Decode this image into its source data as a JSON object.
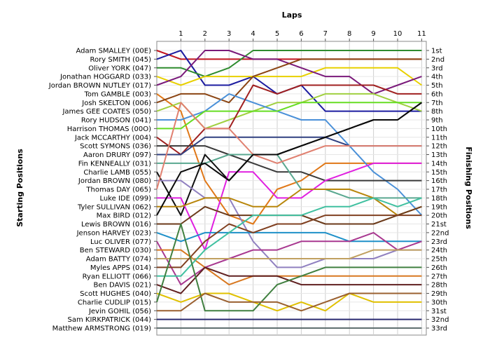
{
  "chart_data": {
    "type": "line",
    "title": "",
    "xlabel": "Laps",
    "ylabel_left": "Starting Positions",
    "ylabel_right": "Finishing Positions",
    "x": [
      0,
      1,
      2,
      3,
      4,
      5,
      6,
      7,
      8,
      9,
      10,
      11
    ],
    "lap_ticks": [
      1,
      2,
      3,
      4,
      5,
      6,
      7,
      8,
      9,
      10,
      11
    ],
    "xlim": [
      0,
      11
    ],
    "ylim": [
      1,
      33
    ],
    "y_inverted": true,
    "grid": true,
    "starting_labels": [
      "Adam SMALLEY (00E)",
      "Rory SMITH (045)",
      "Oliver YORK (047)",
      "Jonathan HOGGARD (033)",
      "Jordan BROWN NUTLEY (017)",
      "Tom GAMBLE (003)",
      "Josh SKELTON (006)",
      "James GEE COATES (050)",
      "Rory HUDSON (041)",
      "Harrison THOMAS (00O)",
      "Jack MCCARTHY (004)",
      "Scott SYMONS (036)",
      "Aaron DRURY (097)",
      "Fin KENNEALLY (031)",
      "Charlie LAMB (055)",
      "Jordan BROWN (080)",
      "Thomas DAY (065)",
      "Luke IDE (099)",
      "Tyler SULLIVAN (062)",
      "Max BIRD (012)",
      "Lewis BROWN (016)",
      "Jenson HARVEY (023)",
      "Luc OLIVER (077)",
      "Ben STEWARD (030)",
      "Adam BATTY (074)",
      "Myles APPS (014)",
      "Ryan ELLIOTT (066)",
      "Ben DAVIS (021)",
      "Scott HUGHES (040)",
      "Charlie CUDLIP (015)",
      "Jevin GOHIL (056)",
      "Sam KIRKPATRICK (044)",
      "Matthew ARMSTRONG (019)"
    ],
    "finishing_labels": [
      "1st",
      "2nd",
      "3rd",
      "4th",
      "5th",
      "6th",
      "7th",
      "8th",
      "9th",
      "10th",
      "11th",
      "12th",
      "13th",
      "14th",
      "15th",
      "16th",
      "17th",
      "18th",
      "19th",
      "20th",
      "21st",
      "22nd",
      "23rd",
      "24th",
      "25th",
      "26th",
      "27th",
      "28th",
      "29th",
      "30th",
      "31st",
      "32nd",
      "33rd"
    ],
    "series": [
      {
        "color": "#c0141e",
        "values": [
          1,
          2,
          2,
          2,
          2,
          2,
          2,
          2,
          2,
          2,
          2,
          2
        ]
      },
      {
        "color": "#1c1ca0",
        "values": [
          2,
          1,
          5,
          5,
          4,
          6,
          5,
          8,
          8,
          8,
          8,
          8
        ]
      },
      {
        "color": "#2e8b2e",
        "values": [
          3,
          3,
          4,
          3,
          1,
          1,
          1,
          1,
          1,
          1,
          1,
          1
        ]
      },
      {
        "color": "#e8d000",
        "values": [
          4,
          5,
          4,
          4,
          4,
          4,
          4,
          3,
          3,
          3,
          3,
          5
        ]
      },
      {
        "color": "#7a1a7a",
        "values": [
          5,
          4,
          1,
          1,
          2,
          2,
          3,
          4,
          4,
          6,
          5,
          4
        ]
      },
      {
        "color": "#e07818",
        "values": [
          6,
          8,
          16,
          20,
          21,
          17,
          16,
          14,
          14,
          14,
          14,
          14
        ]
      },
      {
        "color": "#8b4513",
        "values": [
          7,
          6,
          6,
          7,
          4,
          3,
          2,
          2,
          2,
          2,
          2,
          2
        ]
      },
      {
        "color": "#a0d040",
        "values": [
          8,
          7,
          10,
          9,
          8,
          7,
          7,
          6,
          6,
          6,
          7,
          8
        ]
      },
      {
        "color": "#4a90d8",
        "values": [
          9,
          9,
          8,
          6,
          7,
          8,
          9,
          9,
          12,
          15,
          17,
          20
        ]
      },
      {
        "color": "#66dd22",
        "values": [
          10,
          10,
          8,
          8,
          8,
          8,
          7,
          7,
          7,
          7,
          7,
          7
        ]
      },
      {
        "color": "#a02020",
        "values": [
          11,
          13,
          10,
          10,
          5,
          6,
          5,
          5,
          5,
          5,
          6,
          6
        ]
      },
      {
        "color": "#3a3a3a",
        "values": [
          12,
          12,
          12,
          13,
          14,
          15,
          15,
          16,
          16,
          16,
          16,
          16
        ]
      },
      {
        "color": "#304080",
        "values": [
          13,
          13,
          11,
          11,
          11,
          11,
          11,
          11,
          12,
          12,
          12,
          12
        ]
      },
      {
        "color": "#5aa890",
        "values": [
          14,
          14,
          14,
          13,
          13,
          13,
          17,
          17,
          18,
          18,
          18,
          18
        ]
      },
      {
        "color": "#101010",
        "values": [
          15,
          20,
          13,
          16,
          13,
          13,
          12,
          11,
          10,
          9,
          9,
          7
        ]
      },
      {
        "color": "#9080c0",
        "values": [
          16,
          16,
          18,
          18,
          23,
          26,
          26,
          25,
          25,
          25,
          24,
          24
        ]
      },
      {
        "color": "#e08070",
        "values": [
          17,
          7,
          10,
          10,
          13,
          14,
          13,
          12,
          12,
          12,
          12,
          12
        ]
      },
      {
        "color": "#e020e0",
        "values": [
          18,
          18,
          24,
          15,
          15,
          18,
          18,
          16,
          15,
          14,
          14,
          14
        ]
      },
      {
        "color": "#b8860b",
        "values": [
          19,
          19,
          18,
          18,
          19,
          19,
          17,
          17,
          17,
          18,
          20,
          19
        ]
      },
      {
        "color": "#0a0a0a",
        "values": [
          20,
          15,
          14,
          16,
          13,
          13,
          12,
          11,
          10,
          9,
          9,
          7
        ]
      },
      {
        "color": "#6b3a1a",
        "values": [
          21,
          21,
          19,
          20,
          20,
          20,
          20,
          21,
          21,
          21,
          20,
          19
        ]
      },
      {
        "color": "#1e90c8",
        "values": [
          22,
          23,
          22,
          22,
          22,
          22,
          22,
          22,
          23,
          23,
          23,
          23
        ]
      },
      {
        "color": "#a83890",
        "values": [
          23,
          28,
          26,
          25,
          24,
          24,
          23,
          23,
          23,
          22,
          24,
          23
        ]
      },
      {
        "color": "#d87820",
        "values": [
          24,
          24,
          26,
          28,
          27,
          27,
          27,
          27,
          27,
          27,
          27,
          27
        ]
      },
      {
        "color": "#c0a060",
        "values": [
          25,
          25,
          25,
          25,
          25,
          25,
          25,
          25,
          25,
          24,
          24,
          24
        ]
      },
      {
        "color": "#804020",
        "values": [
          26,
          26,
          23,
          21,
          22,
          21,
          21,
          20,
          20,
          20,
          20,
          20
        ]
      },
      {
        "color": "#40c0a0",
        "values": [
          27,
          27,
          24,
          22,
          20,
          20,
          20,
          19,
          19,
          18,
          19,
          18
        ]
      },
      {
        "color": "#602020",
        "values": [
          28,
          29,
          26,
          27,
          27,
          27,
          28,
          28,
          28,
          28,
          28,
          28
        ]
      },
      {
        "color": "#e0c000",
        "values": [
          29,
          30,
          29,
          29,
          30,
          31,
          30,
          31,
          29,
          30,
          30,
          30
        ]
      },
      {
        "color": "#408040",
        "values": [
          30,
          21,
          31,
          31,
          31,
          28,
          27,
          26,
          26,
          26,
          26,
          26
        ]
      },
      {
        "color": "#9a6030",
        "values": [
          31,
          31,
          29,
          30,
          30,
          30,
          31,
          30,
          29,
          29,
          29,
          29
        ]
      },
      {
        "color": "#2a2a70",
        "values": [
          32,
          32,
          32,
          32,
          32,
          32,
          32,
          32,
          32,
          32,
          32,
          32
        ]
      },
      {
        "color": "#607070",
        "values": [
          33,
          33,
          33,
          33,
          33,
          33,
          33,
          33,
          33,
          33,
          33,
          33
        ]
      }
    ]
  }
}
